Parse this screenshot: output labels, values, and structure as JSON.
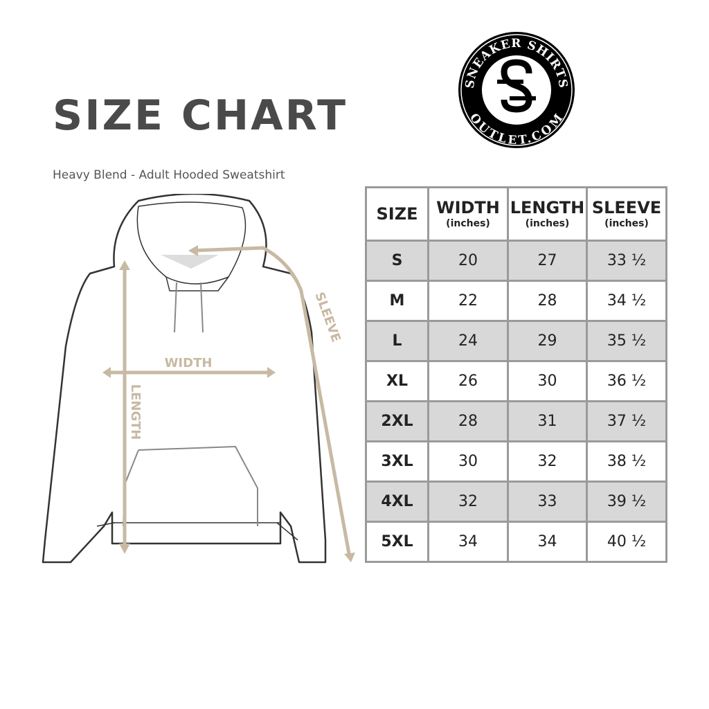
{
  "title": "SIZE CHART",
  "subtitle": "Heavy Blend - Adult Hooded Sweatshirt",
  "logo": {
    "text_top": "SNEAKER SHIRTS",
    "text_bottom": "OUTLET.COM",
    "monogram": "SS"
  },
  "diagram": {
    "width_label": "WIDTH",
    "length_label": "LENGTH",
    "sleeve_label": "SLEEVE",
    "measure_color": "#c8b9a3"
  },
  "table": {
    "headers": [
      {
        "label": "SIZE",
        "unit": ""
      },
      {
        "label": "WIDTH",
        "unit": "(inches)"
      },
      {
        "label": "LENGTH",
        "unit": "(inches)"
      },
      {
        "label": "SLEEVE",
        "unit": "(inches)"
      }
    ],
    "rows": [
      [
        "S",
        "20",
        "27",
        "33 ½"
      ],
      [
        "M",
        "22",
        "28",
        "34 ½"
      ],
      [
        "L",
        "24",
        "29",
        "35 ½"
      ],
      [
        "XL",
        "26",
        "30",
        "36 ½"
      ],
      [
        "2XL",
        "28",
        "31",
        "37 ½"
      ],
      [
        "3XL",
        "30",
        "32",
        "38 ½"
      ],
      [
        "4XL",
        "32",
        "33",
        "39 ½"
      ],
      [
        "5XL",
        "34",
        "34",
        "40 ½"
      ]
    ],
    "stripe_color": "#d8d8d8"
  }
}
